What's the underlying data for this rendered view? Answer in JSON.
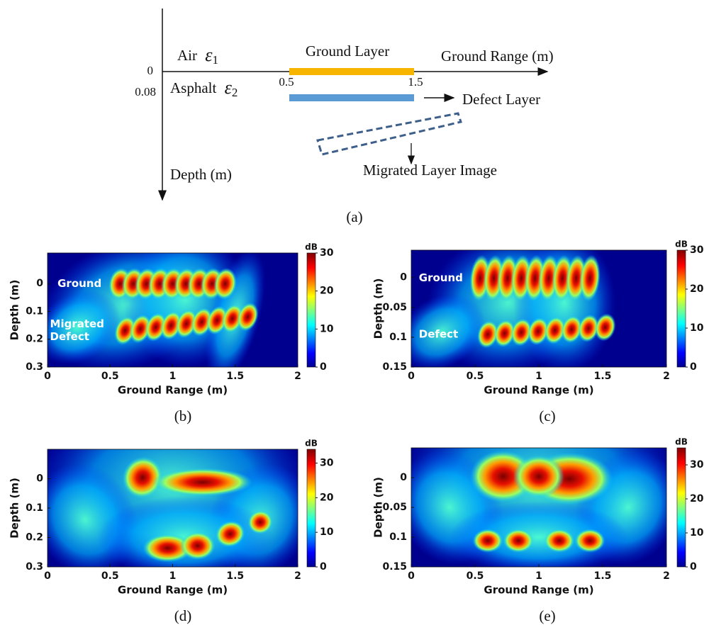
{
  "figure": {
    "diagram": {
      "origin_tick": "0",
      "depth_tick": "0.08",
      "air": {
        "text": "Air",
        "symbol": "ε",
        "subscript": "1"
      },
      "asphalt": {
        "text": "Asphalt",
        "symbol": "ε",
        "subscript": "2"
      },
      "ground_layer": "Ground Layer",
      "range_start": "0.5",
      "range_end": "1.5",
      "x_axis_label": "Ground Range (m)",
      "y_axis_label": "Depth (m)",
      "defect_layer": "Defect Layer",
      "migrated_image": "Migrated Layer Image",
      "caption": "(a)"
    },
    "panels": [
      {
        "caption": "(b)",
        "x_label": "Ground Range (m)",
        "y_label": "Depth (m)",
        "colorbar_label": "dB",
        "xlim": [
          0,
          2
        ],
        "xticks": [
          0,
          0.5,
          1,
          1.5,
          2
        ],
        "ylim": [
          -0.11,
          0.3
        ],
        "yticks": [
          0,
          0.1,
          0.2,
          0.3
        ],
        "clim": [
          0,
          30
        ],
        "cticks": [
          0,
          10,
          20,
          30
        ],
        "annotations": [
          [
            "Ground"
          ],
          [
            "Migrated",
            "Defect"
          ]
        ]
      },
      {
        "caption": "(c)",
        "x_label": "Ground Range (m)",
        "y_label": "Depth (m)",
        "colorbar_label": "dB",
        "xlim": [
          0,
          2
        ],
        "xticks": [
          0,
          0.5,
          1,
          1.5,
          2
        ],
        "ylim": [
          -0.046,
          0.15
        ],
        "yticks": [
          0,
          0.05,
          0.1,
          0.15
        ],
        "clim": [
          0,
          30
        ],
        "cticks": [
          0,
          10,
          20,
          30
        ],
        "annotations": [
          [
            "Ground"
          ],
          [
            "Defect"
          ]
        ]
      },
      {
        "caption": "(d)",
        "x_label": "Ground Range (m)",
        "y_label": "Depth (m)",
        "colorbar_label": "dB",
        "xlim": [
          0,
          2
        ],
        "xticks": [
          0,
          0.5,
          1,
          1.5,
          2
        ],
        "ylim": [
          -0.1,
          0.3
        ],
        "yticks": [
          0,
          0.1,
          0.2,
          0.3
        ],
        "clim": [
          0,
          34
        ],
        "cticks": [
          0,
          10,
          20,
          30
        ],
        "annotations": []
      },
      {
        "caption": "(e)",
        "x_label": "Ground Range (m)",
        "y_label": "Depth (m)",
        "colorbar_label": "dB",
        "xlim": [
          0,
          2
        ],
        "xticks": [
          0,
          0.5,
          1,
          1.5,
          2
        ],
        "ylim": [
          -0.05,
          0.15
        ],
        "yticks": [
          0,
          0.05,
          0.1,
          0.15
        ],
        "clim": [
          0,
          35
        ],
        "cticks": [
          0,
          10,
          20,
          30
        ],
        "annotations": []
      }
    ]
  }
}
